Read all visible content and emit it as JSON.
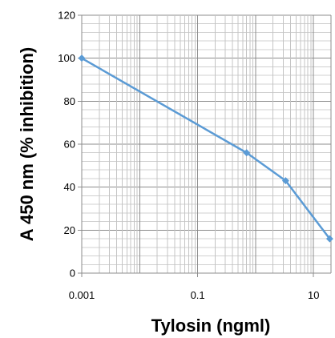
{
  "chart_data": {
    "type": "line",
    "title": "",
    "xlabel": "Tylosin (ngml)",
    "ylabel": "A 450 nm (% inhibition)",
    "x_scale": "log",
    "xlim": [
      0.001,
      20
    ],
    "ylim": [
      0,
      120
    ],
    "x_ticks": [
      0.001,
      0.1,
      10
    ],
    "x_tick_labels": [
      "0.001",
      "0.1",
      "10"
    ],
    "y_ticks": [
      0,
      20,
      40,
      60,
      80,
      100,
      120
    ],
    "y_tick_labels": [
      "0",
      "20",
      "40",
      "60",
      "80",
      "100",
      "120"
    ],
    "grid": true,
    "legend": "none",
    "series": [
      {
        "color": "#5b9bd5",
        "marker": "diamond",
        "x": [
          0.001,
          0.7,
          3.3,
          19
        ],
        "y": [
          100,
          56,
          43,
          16
        ]
      }
    ]
  }
}
